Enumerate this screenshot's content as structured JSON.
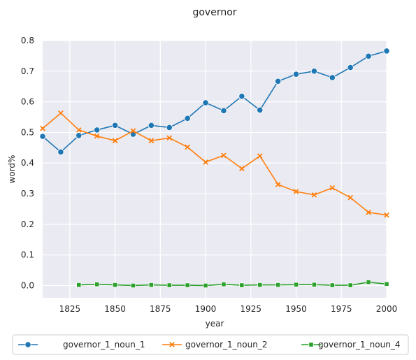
{
  "chart_data": {
    "type": "line",
    "title": "governor",
    "xlabel": "year",
    "ylabel": "word%",
    "xlim": [
      1810,
      2000
    ],
    "ylim": [
      -0.04,
      0.8
    ],
    "xticks": [
      1825,
      1850,
      1875,
      1900,
      1925,
      1950,
      1975,
      2000
    ],
    "yticks": [
      0.0,
      0.1,
      0.2,
      0.3,
      0.4,
      0.5,
      0.6,
      0.7,
      0.8
    ],
    "xtick_labels": [
      "1825",
      "1850",
      "1875",
      "1900",
      "1925",
      "1950",
      "1975",
      "2000"
    ],
    "ytick_labels": [
      "0.0",
      "0.1",
      "0.2",
      "0.3",
      "0.4",
      "0.5",
      "0.6",
      "0.7",
      "0.8"
    ],
    "grid": true,
    "legend_position": "bottom",
    "series": [
      {
        "name": "governor_1_noun_1",
        "color": "#1f77b4",
        "marker": "circle",
        "x": [
          1810,
          1820,
          1830,
          1840,
          1850,
          1860,
          1870,
          1880,
          1890,
          1900,
          1910,
          1920,
          1930,
          1940,
          1950,
          1960,
          1970,
          1980,
          1990,
          2000
        ],
        "y": [
          0.487,
          0.436,
          0.49,
          0.508,
          0.523,
          0.494,
          0.523,
          0.516,
          0.546,
          0.597,
          0.571,
          0.618,
          0.573,
          0.667,
          0.69,
          0.7,
          0.679,
          0.712,
          0.749,
          0.766
        ]
      },
      {
        "name": "governor_1_noun_2",
        "color": "#ff7f0e",
        "marker": "x",
        "x": [
          1810,
          1820,
          1830,
          1840,
          1850,
          1860,
          1870,
          1880,
          1890,
          1900,
          1910,
          1920,
          1930,
          1940,
          1950,
          1960,
          1970,
          1980,
          1990,
          2000
        ],
        "y": [
          0.513,
          0.563,
          0.508,
          0.488,
          0.473,
          0.505,
          0.473,
          0.482,
          0.452,
          0.403,
          0.425,
          0.382,
          0.423,
          0.33,
          0.307,
          0.296,
          0.319,
          0.287,
          0.239,
          0.23
        ]
      },
      {
        "name": "governor_1_noun_4",
        "color": "#2ca02c",
        "marker": "square",
        "x": [
          1830,
          1840,
          1850,
          1860,
          1870,
          1880,
          1890,
          1900,
          1910,
          1920,
          1930,
          1940,
          1950,
          1960,
          1970,
          1980,
          1990,
          2000
        ],
        "y": [
          0.002,
          0.004,
          0.002,
          0.0,
          0.002,
          0.001,
          0.001,
          0.0,
          0.004,
          0.001,
          0.002,
          0.002,
          0.003,
          0.003,
          0.001,
          0.001,
          0.011,
          0.005
        ]
      }
    ]
  }
}
